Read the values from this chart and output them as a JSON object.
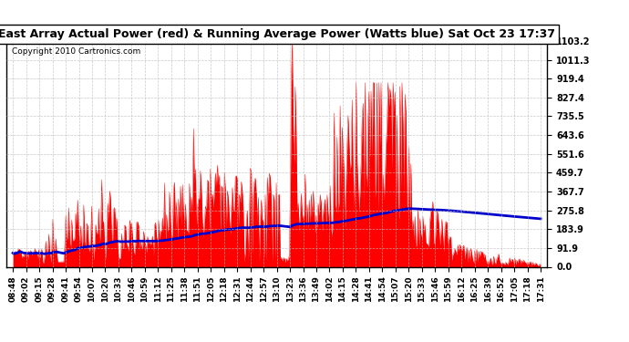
{
  "title": "East Array Actual Power (red) & Running Average Power (Watts blue) Sat Oct 23 17:37",
  "copyright": "Copyright 2010 Cartronics.com",
  "ymax": 1103.2,
  "ymin": 0.0,
  "yticks": [
    0.0,
    91.9,
    183.9,
    275.8,
    367.7,
    459.7,
    551.6,
    643.6,
    735.5,
    827.4,
    919.4,
    1011.3,
    1103.2
  ],
  "xtick_labels": [
    "08:48",
    "09:02",
    "09:15",
    "09:28",
    "09:41",
    "09:54",
    "10:07",
    "10:20",
    "10:33",
    "10:46",
    "10:59",
    "11:12",
    "11:25",
    "11:38",
    "11:51",
    "12:05",
    "12:18",
    "12:31",
    "12:44",
    "12:57",
    "13:10",
    "13:23",
    "13:36",
    "13:49",
    "14:02",
    "14:15",
    "14:28",
    "14:41",
    "14:54",
    "15:07",
    "15:20",
    "15:33",
    "15:46",
    "15:59",
    "16:12",
    "16:25",
    "16:39",
    "16:52",
    "17:05",
    "17:18",
    "17:31"
  ],
  "bg_color": "#ffffff",
  "plot_bg_color": "#ffffff",
  "grid_color": "#bbbbbb",
  "actual_color": "#ff0000",
  "avg_color": "#0000cc",
  "border_color": "#000000",
  "n_ticks": 41
}
